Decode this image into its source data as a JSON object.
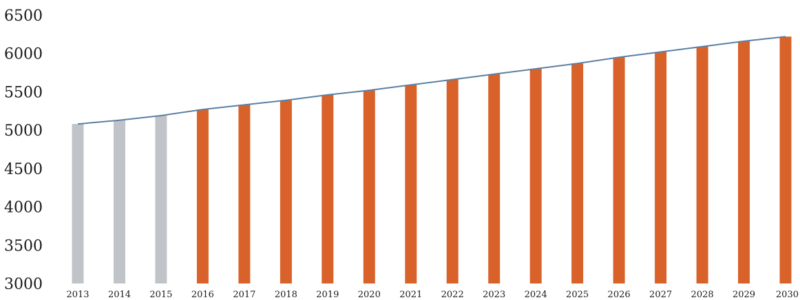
{
  "chart_data": {
    "type": "bar",
    "categories": [
      "2013",
      "2014",
      "2015",
      "2016",
      "2017",
      "2018",
      "2019",
      "2020",
      "2021",
      "2022",
      "2023",
      "2024",
      "2025",
      "2026",
      "2027",
      "2028",
      "2029",
      "2030"
    ],
    "values": [
      5080,
      5130,
      5190,
      5270,
      5330,
      5390,
      5460,
      5520,
      5590,
      5660,
      5730,
      5800,
      5870,
      5950,
      6020,
      6090,
      6160,
      6220
    ],
    "bar_colors": [
      "#c0c4c8",
      "#c0c4c8",
      "#c0c4c8",
      "#d9622b",
      "#d9622b",
      "#d9622b",
      "#d9622b",
      "#d9622b",
      "#d9622b",
      "#d9622b",
      "#d9622b",
      "#d9622b",
      "#d9622b",
      "#d9622b",
      "#d9622b",
      "#d9622b",
      "#d9622b",
      "#d9622b"
    ],
    "trend_line": {
      "color": "#5a7fa3"
    },
    "y_ticks": [
      "6500",
      "6000",
      "5500",
      "5000",
      "4500",
      "4000",
      "3500",
      "3000"
    ],
    "ylim": [
      3000,
      6500
    ],
    "grid": false,
    "legend": "none",
    "title": "",
    "xlabel": "",
    "ylabel": ""
  }
}
